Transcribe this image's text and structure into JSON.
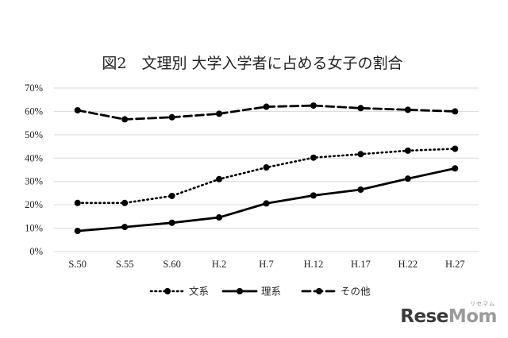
{
  "chart_data": {
    "type": "line",
    "title": "図2　文理別 大学入学者に占める女子の割合",
    "categories": [
      "S.50",
      "S.55",
      "S.60",
      "H.2",
      "H.7",
      "H.12",
      "H.17",
      "H.22",
      "H.27"
    ],
    "y_ticks": [
      "0%",
      "10%",
      "20%",
      "30%",
      "40%",
      "50%",
      "60%",
      "70%"
    ],
    "ylim": [
      0,
      70
    ],
    "y_unit": "%",
    "grid": true,
    "legend_position": "bottom",
    "series": [
      {
        "name": "文系",
        "style": "dotted",
        "color": "#000000",
        "values": [
          20.8,
          20.8,
          23.8,
          31.0,
          36.0,
          40.2,
          41.7,
          43.2,
          44.0
        ]
      },
      {
        "name": "理系",
        "style": "solid",
        "color": "#000000",
        "values": [
          8.8,
          10.5,
          12.3,
          14.6,
          20.6,
          24.0,
          26.5,
          31.2,
          35.6
        ]
      },
      {
        "name": "その他",
        "style": "dashed",
        "color": "#000000",
        "values": [
          60.5,
          56.6,
          57.5,
          59.0,
          62.0,
          62.5,
          61.4,
          60.7,
          60.0
        ]
      }
    ]
  },
  "watermark": {
    "text_a": "Rese",
    "text_b": "Mom",
    "sub": "リセマム"
  }
}
